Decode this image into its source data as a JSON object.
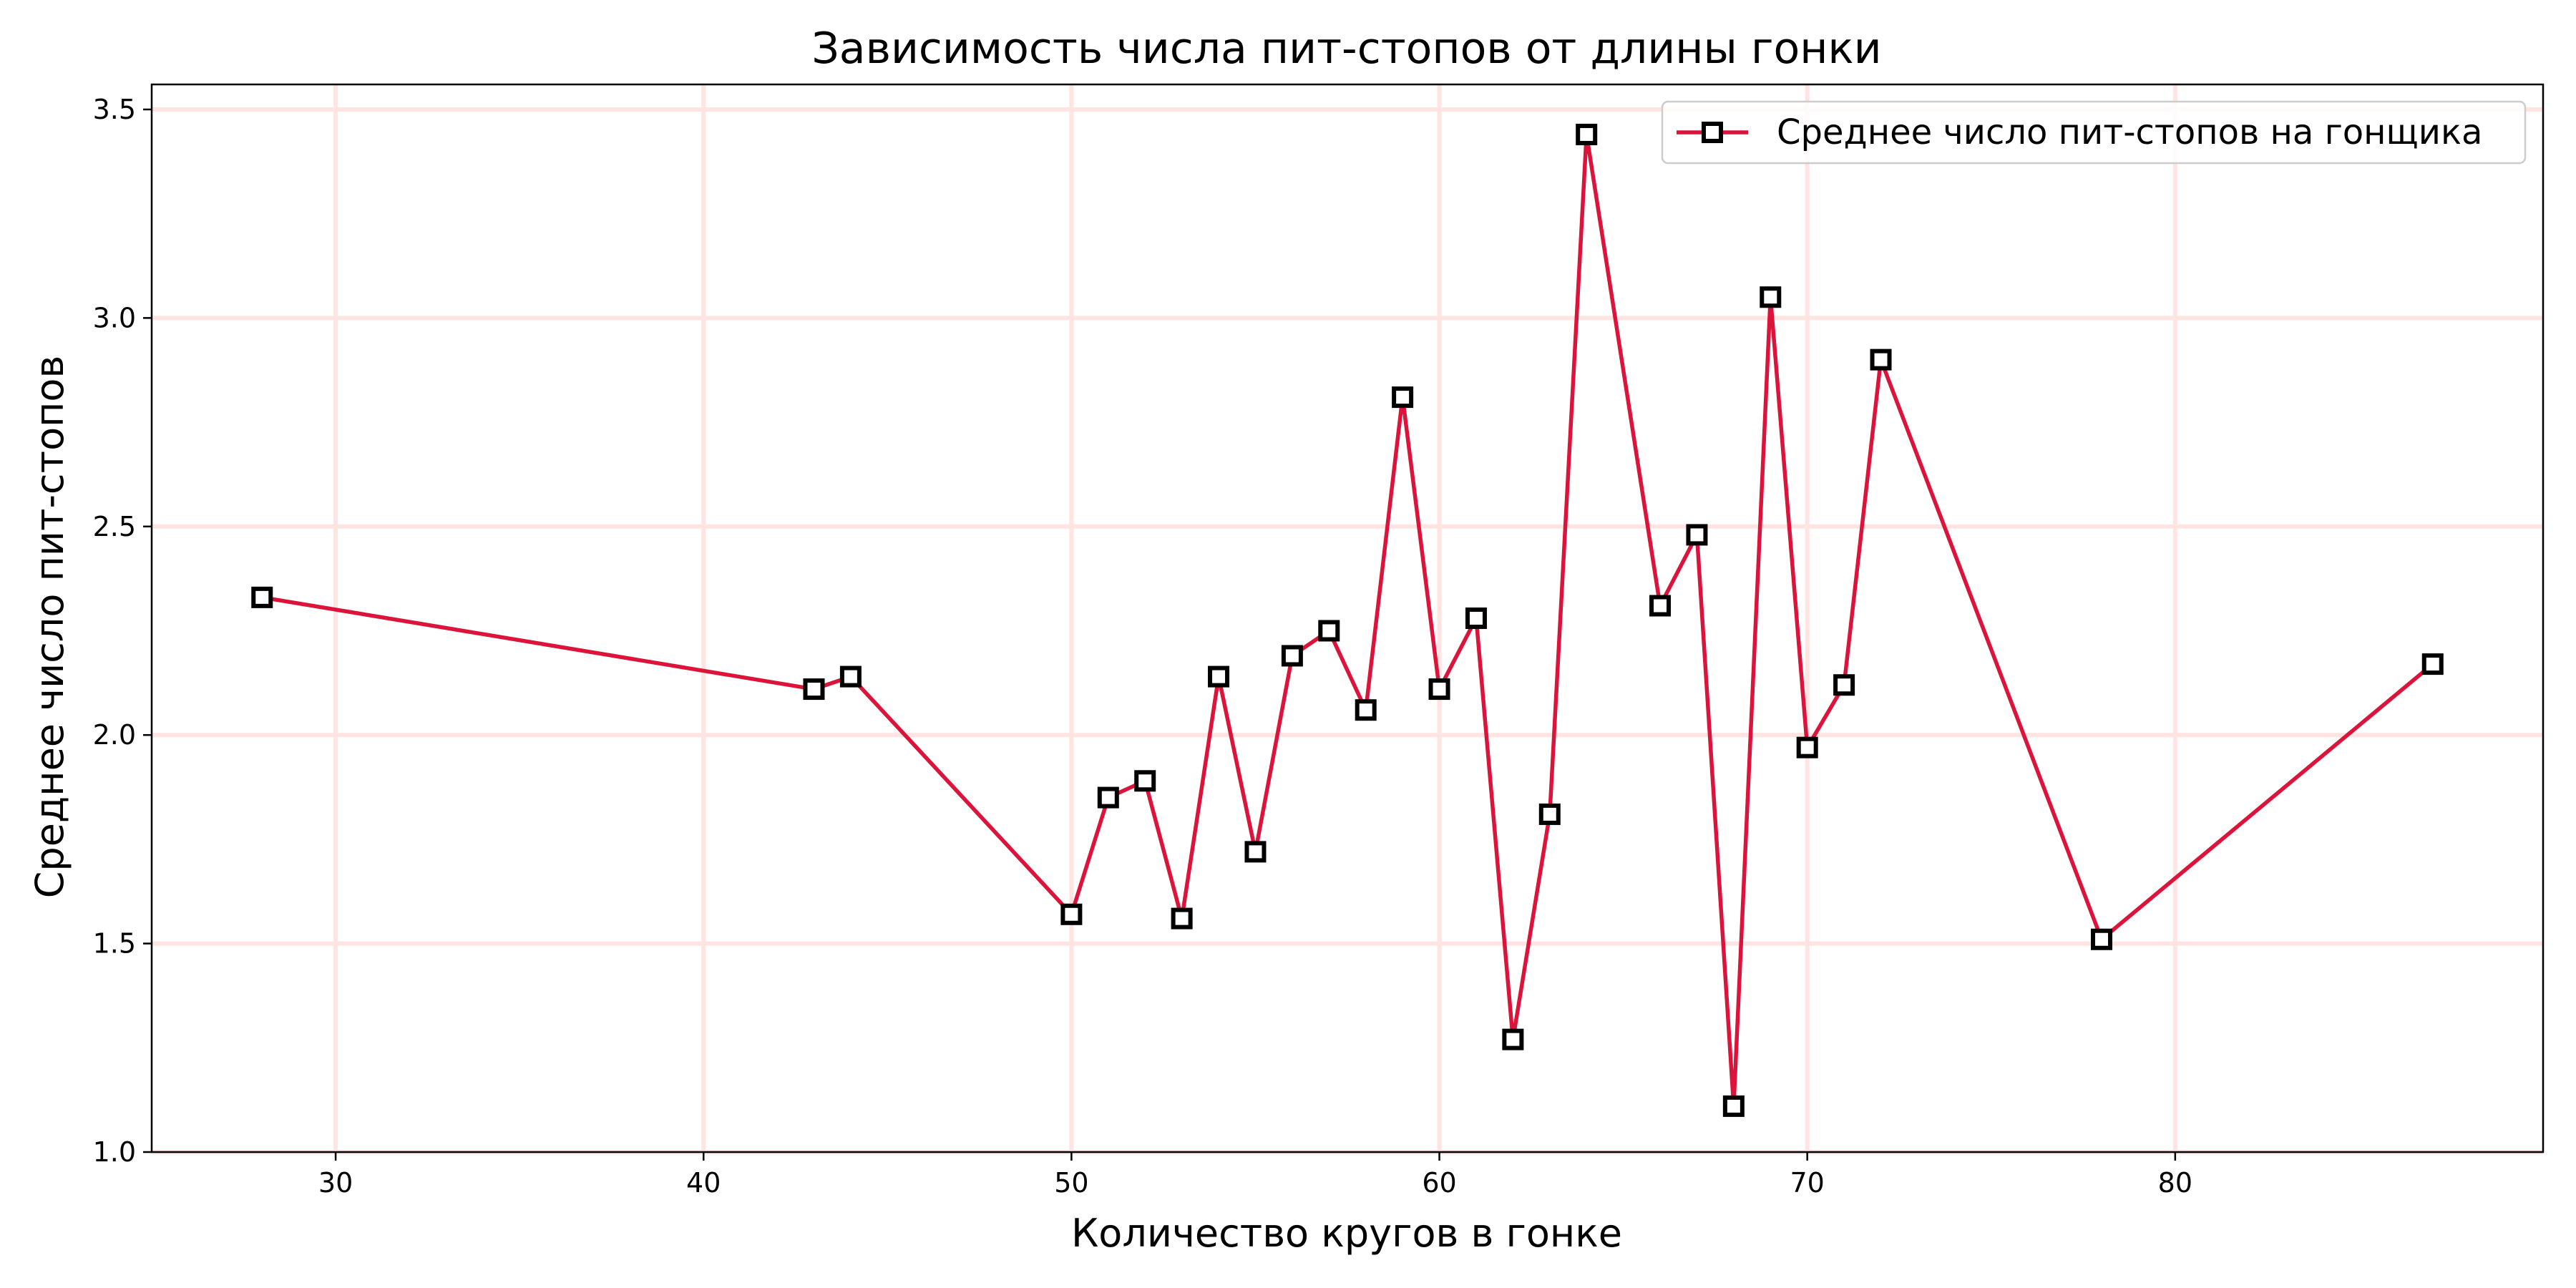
{
  "chart_data": {
    "type": "line",
    "title": "Зависимость числа пит-стопов от длины гонки",
    "xlabel": "Количество кругов в гонке",
    "ylabel": "Среднее число пит-стопов",
    "xlim": [
      25,
      90
    ],
    "ylim": [
      1.0,
      3.56
    ],
    "x_ticks": [
      30,
      40,
      50,
      60,
      70,
      80
    ],
    "y_ticks": [
      1.0,
      1.5,
      2.0,
      2.5,
      3.0,
      3.5
    ],
    "x_tick_labels": [
      "30",
      "40",
      "50",
      "60",
      "70",
      "80"
    ],
    "y_tick_labels": [
      "1.0",
      "1.5",
      "2.0",
      "2.5",
      "3.0",
      "3.5"
    ],
    "grid": true,
    "legend_position": "top-right",
    "colors": {
      "line": "#dc143c",
      "marker_edge": "#000000",
      "marker_face": "#ffffff",
      "grid": "#ffe4e1"
    },
    "series": [
      {
        "name": "Среднее число пит-стопов на гонщика",
        "x": [
          28,
          43,
          44,
          50,
          51,
          52,
          53,
          54,
          55,
          56,
          57,
          58,
          59,
          60,
          61,
          62,
          63,
          64,
          66,
          67,
          68,
          69,
          70,
          71,
          72,
          78,
          87
        ],
        "y": [
          2.33,
          2.11,
          2.14,
          1.57,
          1.85,
          1.89,
          1.56,
          2.14,
          1.72,
          2.19,
          2.25,
          2.06,
          2.81,
          2.11,
          2.28,
          1.27,
          1.81,
          3.44,
          2.31,
          2.48,
          1.11,
          3.05,
          1.97,
          2.12,
          2.9,
          1.51,
          2.17
        ]
      }
    ]
  }
}
